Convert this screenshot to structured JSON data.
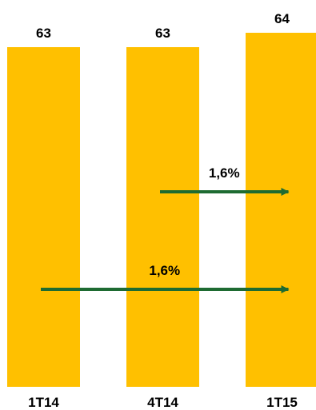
{
  "chart_data": {
    "type": "bar",
    "title": "",
    "xlabel": "",
    "ylabel": "",
    "categories": [
      "1T14",
      "4T14",
      "1T15"
    ],
    "values": [
      63,
      63,
      64
    ],
    "value_labels": [
      "63",
      "63",
      "64"
    ],
    "ylim": [
      0,
      64
    ],
    "grid": false,
    "legend": "none",
    "colors": {
      "bar": "#FFC000",
      "arrow": "#1E6B32",
      "text": "#000000"
    },
    "annotations": [
      {
        "from": "4T14",
        "to": "1T15",
        "label": "1,6%"
      },
      {
        "from": "1T14",
        "to": "1T15",
        "label": "1,6%"
      }
    ]
  }
}
